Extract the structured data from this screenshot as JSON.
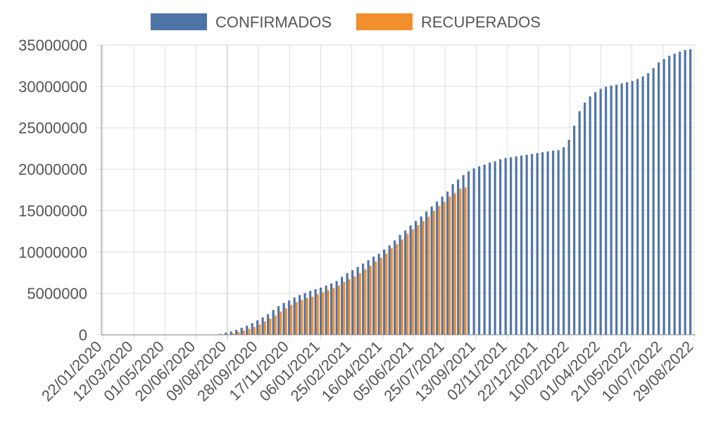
{
  "chart_data": {
    "type": "bar",
    "title": "",
    "xlabel": "",
    "ylabel": "",
    "ylim": [
      0,
      35000000
    ],
    "yticks": [
      0,
      5000000,
      10000000,
      15000000,
      20000000,
      25000000,
      30000000,
      35000000
    ],
    "xtick_labels": [
      "22/01/2020",
      "12/03/2020",
      "01/05/2020",
      "20/06/2020",
      "09/08/2020",
      "28/09/2020",
      "17/11/2020",
      "06/01/2021",
      "25/02/2021",
      "16/04/2021",
      "05/06/2021",
      "25/07/2021",
      "13/09/2021",
      "02/11/2021",
      "22/12/2021",
      "10/02/2022",
      "01/04/2022",
      "21/05/2022",
      "10/07/2022",
      "29/08/2022"
    ],
    "grid": true,
    "legend_position": "top-center",
    "colors": {
      "confirmados": "#4e74a6",
      "recuperados": "#f28e2b"
    },
    "series": [
      {
        "name": "CONFIRMADOS",
        "values": [
          0,
          0,
          0,
          0,
          0,
          0,
          0,
          0,
          0,
          0,
          0,
          0,
          0,
          0,
          0,
          0,
          0,
          0,
          0,
          0,
          0,
          50000,
          100000,
          250000,
          400000,
          600000,
          850000,
          1100000,
          1400000,
          1750000,
          2100000,
          2500000,
          3000000,
          3450000,
          3850000,
          4150000,
          4500000,
          4800000,
          5050000,
          5300000,
          5500000,
          5700000,
          5950000,
          6200000,
          6500000,
          7000000,
          7450000,
          7800000,
          8200000,
          8600000,
          9000000,
          9450000,
          9800000,
          10300000,
          10800000,
          11400000,
          12050000,
          12600000,
          13200000,
          13750000,
          14300000,
          14900000,
          15500000,
          16100000,
          16700000,
          17300000,
          18200000,
          18750000,
          19300000,
          19750000,
          20100000,
          20350000,
          20550000,
          20800000,
          20950000,
          21200000,
          21350000,
          21450000,
          21550000,
          21650000,
          21750000,
          21850000,
          21950000,
          22050000,
          22150000,
          22250000,
          22300000,
          22650000,
          23550000,
          25250000,
          27000000,
          28050000,
          28800000,
          29300000,
          29700000,
          29950000,
          30100000,
          30200000,
          30350000,
          30500000,
          30650000,
          30900000,
          31200000,
          31600000,
          32200000,
          32900000,
          33300000,
          33700000,
          33950000,
          34200000,
          34400000,
          34500000
        ]
      },
      {
        "name": "RECUPERADOS",
        "values": [
          0,
          0,
          0,
          0,
          0,
          0,
          0,
          0,
          0,
          0,
          0,
          0,
          0,
          0,
          0,
          0,
          0,
          0,
          0,
          0,
          0,
          0,
          0,
          60000,
          180000,
          330000,
          500000,
          720000,
          950000,
          1250000,
          1600000,
          1950000,
          2350000,
          2800000,
          3200000,
          3600000,
          3950000,
          4200000,
          4450000,
          4600000,
          4900000,
          5150000,
          5400000,
          5650000,
          5950000,
          6400000,
          6700000,
          7050000,
          7450000,
          7900000,
          8350000,
          8850000,
          9300000,
          9800000,
          10450000,
          10950000,
          11500000,
          12200000,
          12750000,
          13250000,
          13750000,
          14250000,
          14950000,
          15550000,
          16050000,
          16700000,
          17100000,
          17650000,
          17800000
        ]
      }
    ]
  }
}
